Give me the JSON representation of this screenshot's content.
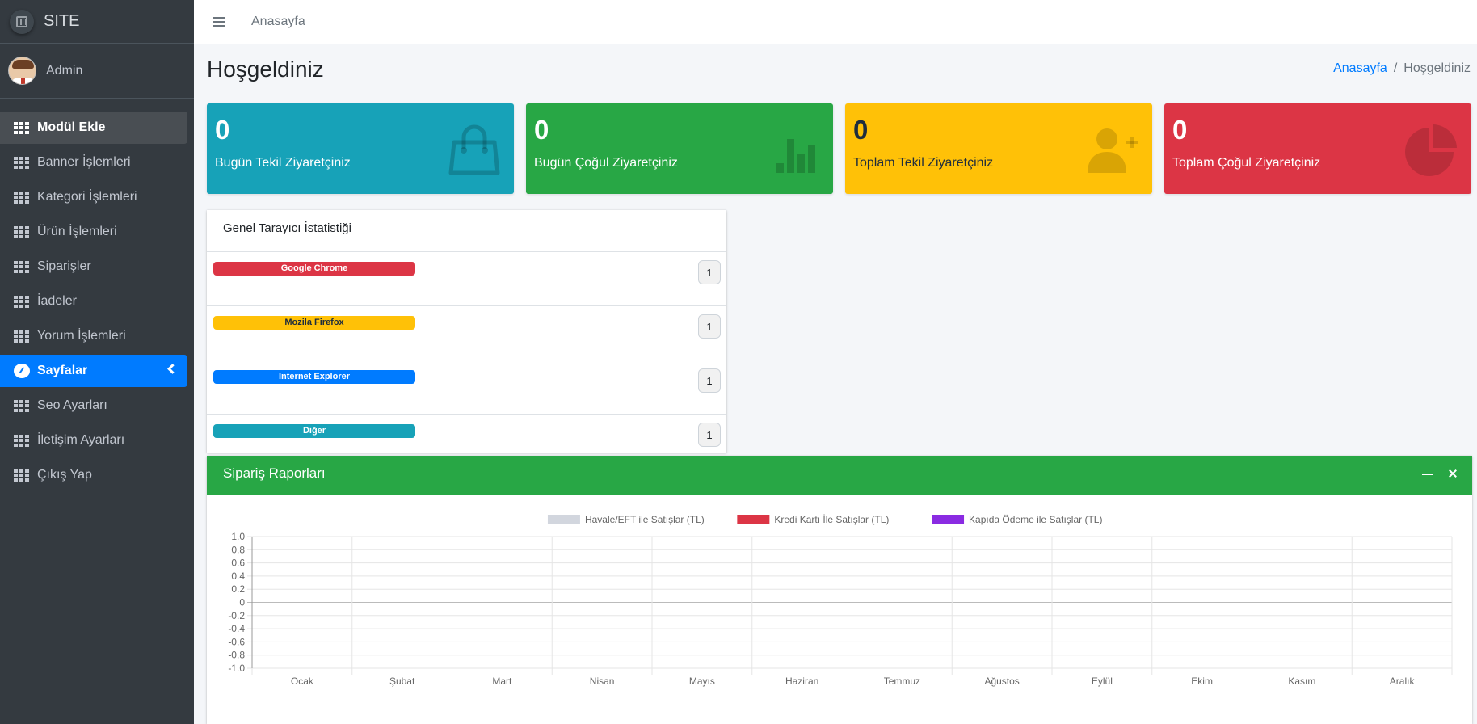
{
  "brand": {
    "name": "SITE"
  },
  "user": {
    "name": "Admin"
  },
  "sidebar": {
    "items": [
      {
        "label": "Modül Ekle",
        "icon": "grid-icon"
      },
      {
        "label": "Banner İşlemleri",
        "icon": "grid-icon"
      },
      {
        "label": "Kategori İşlemleri",
        "icon": "grid-icon"
      },
      {
        "label": "Ürün İşlemleri",
        "icon": "grid-icon"
      },
      {
        "label": "Siparişler",
        "icon": "grid-icon"
      },
      {
        "label": "İadeler",
        "icon": "grid-icon"
      },
      {
        "label": "Yorum İşlemleri",
        "icon": "grid-icon"
      },
      {
        "label": "Sayfalar",
        "icon": "tachometer-icon"
      },
      {
        "label": "Seo Ayarları",
        "icon": "grid-icon"
      },
      {
        "label": "İletişim Ayarları",
        "icon": "grid-icon"
      },
      {
        "label": "Çıkış Yap",
        "icon": "grid-icon"
      }
    ]
  },
  "topbar": {
    "home_link": "Anasayfa"
  },
  "header": {
    "title": "Hoşgeldiniz",
    "breadcrumb": {
      "home": "Anasayfa",
      "separator": "/",
      "current": "Hoşgeldiniz"
    }
  },
  "stats_boxes": [
    {
      "value": "0",
      "label": "Bugün Tekil Ziyaretçiniz",
      "color": "#17a2b8",
      "icon": "shopping-bag-icon"
    },
    {
      "value": "0",
      "label": "Bugün Çoğul Ziyaretçiniz",
      "color": "#28a745",
      "icon": "bar-chart-icon"
    },
    {
      "value": "0",
      "label": "Toplam Tekil Ziyaretçiniz",
      "color": "#ffc107",
      "icon": "user-plus-icon"
    },
    {
      "value": "0",
      "label": "Toplam Çoğul Ziyaretçiniz",
      "color": "#dc3545",
      "icon": "pie-chart-icon"
    }
  ],
  "browser_stats": {
    "title": "Genel Tarayıcı İstatistiği",
    "rows": [
      {
        "label": "Google Chrome",
        "count": "1",
        "color": "#dc3545"
      },
      {
        "label": "Mozila Firefox",
        "count": "1",
        "color": "#ffc107"
      },
      {
        "label": "Internet Explorer",
        "count": "1",
        "color": "#007bff"
      },
      {
        "label": "Diğer",
        "count": "1",
        "color": "#17a2b8"
      }
    ]
  },
  "orders_card": {
    "title": "Sipariş Raporları"
  },
  "chart_data": {
    "type": "bar",
    "categories": [
      "Ocak",
      "Şubat",
      "Mart",
      "Nisan",
      "Mayıs",
      "Haziran",
      "Temmuz",
      "Ağustos",
      "Eylül",
      "Ekim",
      "Kasım",
      "Aralık"
    ],
    "series": [
      {
        "name": "Havale/EFT ile Satışlar (TL)",
        "color": "#d2d6de",
        "values": [
          0,
          0,
          0,
          0,
          0,
          0,
          0,
          0,
          0,
          0,
          0,
          0
        ]
      },
      {
        "name": "Kredi Kartı İle Satışlar (TL)",
        "color": "#dc3545",
        "values": [
          0,
          0,
          0,
          0,
          0,
          0,
          0,
          0,
          0,
          0,
          0,
          0
        ]
      },
      {
        "name": "Kapıda Ödeme ile Satışlar (TL)",
        "color": "#8a2be2",
        "values": [
          0,
          0,
          0,
          0,
          0,
          0,
          0,
          0,
          0,
          0,
          0,
          0
        ]
      }
    ],
    "ylim": [
      -1.0,
      1.0
    ],
    "yticks": [
      "1.0",
      "0.8",
      "0.6",
      "0.4",
      "0.2",
      "0",
      "-0.2",
      "-0.4",
      "-0.6",
      "-0.8",
      "-1.0"
    ],
    "grid": true,
    "legend": "top-center"
  }
}
